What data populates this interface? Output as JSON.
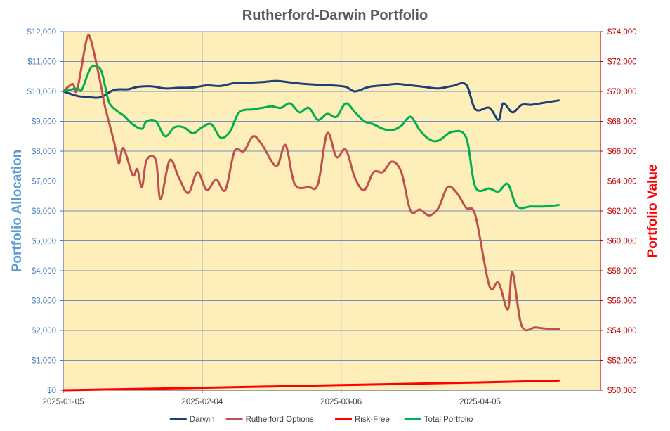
{
  "chart_data": {
    "type": "line",
    "title": "Rutherford-Darwin Portfolio",
    "ylabel": "Portfolio Allocation",
    "y2label": "Portfolio Value",
    "ylim": [
      0,
      12000
    ],
    "y2lim": [
      50000,
      74000
    ],
    "yticks": [
      "$0",
      "$1,000",
      "$2,000",
      "$3,000",
      "$4,000",
      "$5,000",
      "$6,000",
      "$7,000",
      "$8,000",
      "$9,000",
      "$10,000",
      "$11,000",
      "$12,000"
    ],
    "y2ticks": [
      "$50,000",
      "$52,000",
      "$54,000",
      "$56,000",
      "$58,000",
      "$60,000",
      "$62,000",
      "$64,000",
      "$66,000",
      "$68,000",
      "$70,000",
      "$72,000",
      "$74,000"
    ],
    "xticks": [
      "2025-01-05",
      "2025-02-04",
      "2025-03-06",
      "2025-04-05"
    ],
    "xlim": [
      "2025-01-05",
      "2025-05-01"
    ],
    "grid": true,
    "legend_position": "bottom",
    "colors": {
      "background": "#fdeeba",
      "grid": "#4472c4",
      "left_axis": "#4472c4",
      "right_axis": "#c00000"
    },
    "series": [
      {
        "name": "Darwin",
        "axis": "left",
        "color": "#1f3f7a",
        "x": [
          "2025-01-05",
          "2025-01-08",
          "2025-01-10",
          "2025-01-13",
          "2025-01-16",
          "2025-01-19",
          "2025-01-21",
          "2025-01-24",
          "2025-01-27",
          "2025-01-30",
          "2025-02-02",
          "2025-02-05",
          "2025-02-08",
          "2025-02-11",
          "2025-02-14",
          "2025-02-17",
          "2025-02-20",
          "2025-02-23",
          "2025-02-26",
          "2025-03-01",
          "2025-03-04",
          "2025-03-07",
          "2025-03-09",
          "2025-03-12",
          "2025-03-15",
          "2025-03-18",
          "2025-03-21",
          "2025-03-24",
          "2025-03-27",
          "2025-03-30",
          "2025-04-02",
          "2025-04-04",
          "2025-04-07",
          "2025-04-09",
          "2025-04-10",
          "2025-04-12",
          "2025-04-14",
          "2025-04-16",
          "2025-04-18",
          "2025-04-20",
          "2025-04-22"
        ],
        "values": [
          10000,
          9850,
          9820,
          9800,
          10050,
          10070,
          10150,
          10170,
          10100,
          10120,
          10130,
          10200,
          10180,
          10280,
          10290,
          10310,
          10350,
          10300,
          10250,
          10220,
          10200,
          10150,
          10000,
          10150,
          10200,
          10250,
          10200,
          10150,
          10100,
          10180,
          10220,
          9400,
          9450,
          9050,
          9600,
          9300,
          9550,
          9550,
          9600,
          9650,
          9700
        ]
      },
      {
        "name": "Rutherford Options",
        "axis": "left",
        "color": "#c0504d",
        "x": [
          "2025-01-05",
          "2025-01-07",
          "2025-01-08",
          "2025-01-10",
          "2025-01-11",
          "2025-01-13",
          "2025-01-14",
          "2025-01-16",
          "2025-01-17",
          "2025-01-18",
          "2025-01-20",
          "2025-01-21",
          "2025-01-22",
          "2025-01-23",
          "2025-01-25",
          "2025-01-26",
          "2025-01-28",
          "2025-01-30",
          "2025-02-01",
          "2025-02-03",
          "2025-02-05",
          "2025-02-07",
          "2025-02-09",
          "2025-02-11",
          "2025-02-13",
          "2025-02-15",
          "2025-02-17",
          "2025-02-20",
          "2025-02-22",
          "2025-02-24",
          "2025-02-27",
          "2025-03-01",
          "2025-03-03",
          "2025-03-05",
          "2025-03-07",
          "2025-03-09",
          "2025-03-11",
          "2025-03-13",
          "2025-03-15",
          "2025-03-17",
          "2025-03-19",
          "2025-03-21",
          "2025-03-23",
          "2025-03-25",
          "2025-03-27",
          "2025-03-29",
          "2025-03-31",
          "2025-04-02",
          "2025-04-04",
          "2025-04-07",
          "2025-04-09",
          "2025-04-11",
          "2025-04-12",
          "2025-04-14",
          "2025-04-17",
          "2025-04-20",
          "2025-04-22"
        ],
        "values": [
          10000,
          10250,
          10050,
          11700,
          11700,
          10300,
          9500,
          8300,
          7600,
          8100,
          7200,
          7400,
          6800,
          7700,
          7700,
          6400,
          7700,
          7100,
          6600,
          7300,
          6700,
          7050,
          6700,
          8000,
          8000,
          8500,
          8200,
          7500,
          8200,
          6900,
          6800,
          6900,
          8600,
          7800,
          8050,
          7100,
          6700,
          7300,
          7300,
          7650,
          7300,
          6000,
          6050,
          5850,
          6100,
          6800,
          6600,
          6100,
          5850,
          3500,
          3600,
          2700,
          3950,
          2150,
          2100,
          2050,
          2050
        ]
      },
      {
        "name": "Risk-Free",
        "axis": "left",
        "color": "#ff0000",
        "x": [
          "2025-01-05",
          "2025-02-04",
          "2025-03-06",
          "2025-04-05",
          "2025-04-22"
        ],
        "values": [
          0,
          80,
          170,
          260,
          320
        ]
      },
      {
        "name": "Total Portfolio",
        "axis": "right",
        "color": "#00b050",
        "x": [
          "2025-01-05",
          "2025-01-08",
          "2025-01-09",
          "2025-01-11",
          "2025-01-13",
          "2025-01-14",
          "2025-01-15",
          "2025-01-17",
          "2025-01-18",
          "2025-01-20",
          "2025-01-22",
          "2025-01-23",
          "2025-01-25",
          "2025-01-27",
          "2025-01-29",
          "2025-01-31",
          "2025-02-02",
          "2025-02-04",
          "2025-02-06",
          "2025-02-08",
          "2025-02-10",
          "2025-02-12",
          "2025-02-15",
          "2025-02-17",
          "2025-02-19",
          "2025-02-21",
          "2025-02-23",
          "2025-02-25",
          "2025-02-27",
          "2025-03-01",
          "2025-03-03",
          "2025-03-05",
          "2025-03-07",
          "2025-03-09",
          "2025-03-11",
          "2025-03-13",
          "2025-03-15",
          "2025-03-17",
          "2025-03-19",
          "2025-03-21",
          "2025-03-23",
          "2025-03-25",
          "2025-03-27",
          "2025-03-30",
          "2025-04-02",
          "2025-04-04",
          "2025-04-07",
          "2025-04-09",
          "2025-04-11",
          "2025-04-13",
          "2025-04-16",
          "2025-04-19",
          "2025-04-22"
        ],
        "values": [
          70000,
          70200,
          70100,
          71600,
          71500,
          70400,
          69200,
          68600,
          68400,
          67800,
          67500,
          68000,
          68000,
          67000,
          67600,
          67600,
          67200,
          67600,
          67800,
          66900,
          67300,
          68600,
          68800,
          68900,
          69000,
          68900,
          69200,
          68600,
          68900,
          68100,
          68500,
          68300,
          69200,
          68600,
          68000,
          67800,
          67500,
          67400,
          67700,
          68300,
          67400,
          66800,
          66700,
          67300,
          66900,
          63600,
          63500,
          63300,
          63800,
          62300,
          62300,
          62300,
          62400
        ]
      }
    ]
  }
}
